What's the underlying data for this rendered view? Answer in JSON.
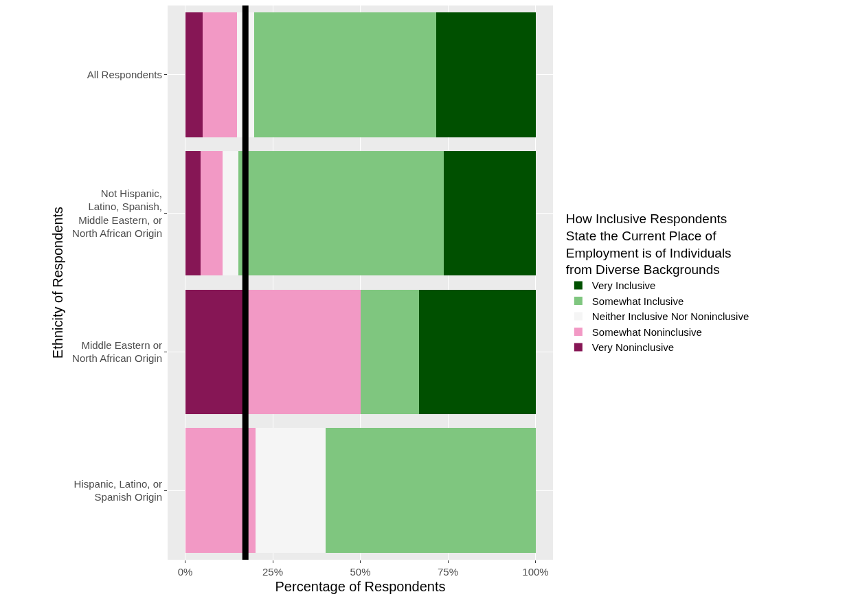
{
  "chart_data": {
    "type": "bar",
    "orientation": "horizontal",
    "stacked": true,
    "xlabel": "Percentage of Respondents",
    "ylabel": "Ethnicity of Respondents",
    "legend_title": "How Inclusive Respondents\nState the Current Place of\nEmployment is of Individuals\nfrom Diverse Backgrounds",
    "categories": [
      "All Respondents",
      "Not Hispanic,\nLatino, Spanish,\nMiddle Eastern, or\nNorth African Origin",
      "Middle Eastern or\nNorth African Origin",
      "Hispanic, Latino, or\nSpanish Origin"
    ],
    "series": [
      {
        "name": "Very Noninclusive",
        "color": "#861655",
        "values": [
          5.0,
          4.4,
          16.7,
          0
        ]
      },
      {
        "name": "Somewhat Noninclusive",
        "color": "#f299c5",
        "values": [
          9.8,
          6.3,
          33.3,
          20
        ]
      },
      {
        "name": "Neither Inclusive Nor Noninclusive",
        "color": "#f5f5f5",
        "values": [
          4.9,
          4.4,
          0,
          20
        ]
      },
      {
        "name": "Somewhat Inclusive",
        "color": "#7fc67f",
        "values": [
          51.9,
          58.8,
          16.7,
          60
        ]
      },
      {
        "name": "Very Inclusive",
        "color": "#005000",
        "values": [
          28.4,
          26.1,
          33.3,
          0
        ]
      }
    ],
    "xlim": [
      -5,
      105
    ],
    "xticks": [
      {
        "value": 0,
        "label": "0%"
      },
      {
        "value": 25,
        "label": "25%"
      },
      {
        "value": 50,
        "label": "50%"
      },
      {
        "value": 75,
        "label": "75%"
      },
      {
        "value": 100,
        "label": "100%"
      }
    ],
    "ref_lines": [
      {
        "axis": "x",
        "value": 17.2,
        "color": "#000000"
      }
    ],
    "grid": true,
    "legend": "right"
  }
}
